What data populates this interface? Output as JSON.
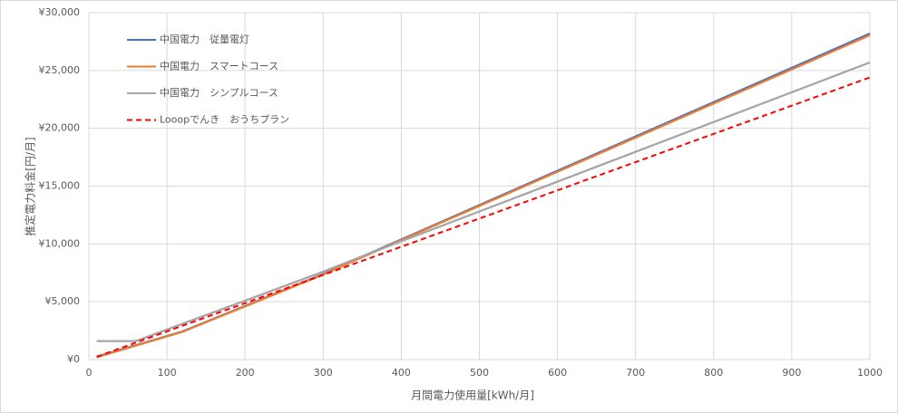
{
  "chart_data": {
    "type": "line",
    "x_label": "月間電力使用量[kWh/月]",
    "y_label": "推定電力料金[円/月]",
    "x": [
      10,
      60,
      120,
      200,
      300,
      360,
      1000
    ],
    "series": [
      {
        "name": "中国電力　従量電灯",
        "color": "#4472c4",
        "dashed": false,
        "values": [
          250,
          1240,
          2430,
          4640,
          7400,
          9200,
          28200
        ]
      },
      {
        "name": "中国電力　スマートコース",
        "color": "#ed7d31",
        "dashed": false,
        "values": [
          200,
          1200,
          2400,
          4600,
          7350,
          9150,
          28050
        ]
      },
      {
        "name": "中国電力　シンプルコース",
        "color": "#a5a5a5",
        "dashed": false,
        "values": [
          1600,
          1600,
          3100,
          5100,
          7600,
          9200,
          25700
        ]
      },
      {
        "name": "Looopでんき　おうちプラン",
        "color": "#ff0000",
        "dashed": true,
        "values": [
          240,
          1460,
          2930,
          4880,
          7320,
          8780,
          24400
        ]
      }
    ],
    "xlim": [
      0,
      1000
    ],
    "xticks": [
      0,
      100,
      200,
      300,
      400,
      500,
      600,
      700,
      800,
      900,
      1000
    ],
    "ylim": [
      0,
      30000
    ],
    "yticks": [
      {
        "value": 0,
        "label": "¥0"
      },
      {
        "value": 5000,
        "label": "¥5,000"
      },
      {
        "value": 10000,
        "label": "¥10,000"
      },
      {
        "value": 15000,
        "label": "¥15,000"
      },
      {
        "value": 20000,
        "label": "¥20,000"
      },
      {
        "value": 25000,
        "label": "¥25,000"
      },
      {
        "value": 30000,
        "label": "¥30,000"
      }
    ],
    "grid": true,
    "legend": "top-left"
  }
}
